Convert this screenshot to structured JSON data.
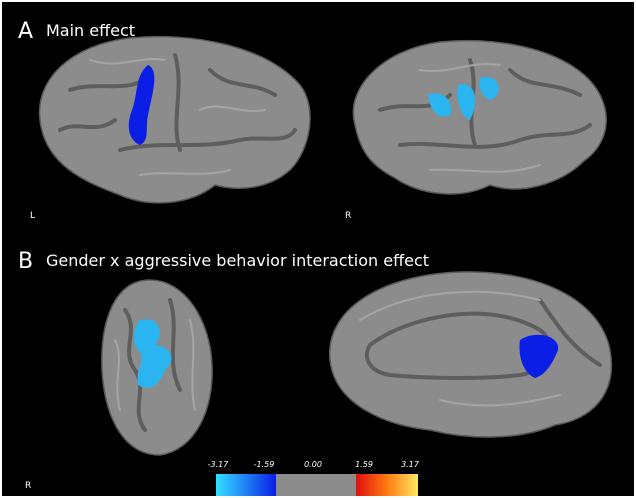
{
  "panels": [
    {
      "letter": "A",
      "title": "Main effect",
      "view_labels": [
        "L",
        "R"
      ]
    },
    {
      "letter": "B",
      "title": "Gender x aggressive behavior interaction effect",
      "view_labels": [
        "R"
      ]
    }
  ],
  "colorbar": {
    "labels": [
      "-3.17",
      "-1.59",
      "0.00",
      "1.59",
      "3.17"
    ]
  }
}
